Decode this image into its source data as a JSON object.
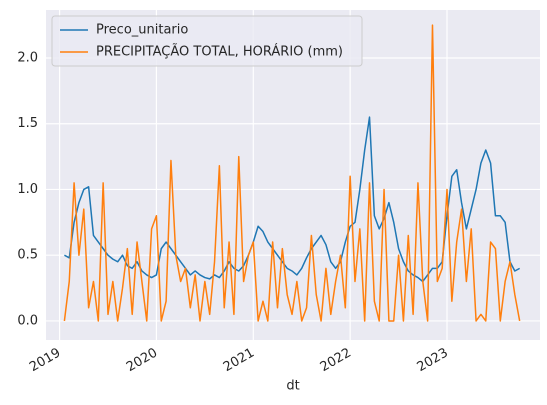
{
  "chart_data": {
    "type": "line",
    "xlabel": "dt",
    "x": [
      2019.05,
      2019.1,
      2019.15,
      2019.2,
      2019.25,
      2019.3,
      2019.35,
      2019.4,
      2019.45,
      2019.5,
      2019.55,
      2019.6,
      2019.65,
      2019.7,
      2019.75,
      2019.8,
      2019.85,
      2019.9,
      2019.95,
      2020.0,
      2020.05,
      2020.1,
      2020.15,
      2020.2,
      2020.25,
      2020.3,
      2020.35,
      2020.4,
      2020.45,
      2020.5,
      2020.55,
      2020.6,
      2020.65,
      2020.7,
      2020.75,
      2020.8,
      2020.85,
      2020.9,
      2020.95,
      2021.0,
      2021.05,
      2021.1,
      2021.15,
      2021.2,
      2021.25,
      2021.3,
      2021.35,
      2021.4,
      2021.45,
      2021.5,
      2021.55,
      2021.6,
      2021.65,
      2021.7,
      2021.75,
      2021.8,
      2021.85,
      2021.9,
      2021.95,
      2022.0,
      2022.05,
      2022.1,
      2022.15,
      2022.2,
      2022.25,
      2022.3,
      2022.35,
      2022.4,
      2022.45,
      2022.5,
      2022.55,
      2022.6,
      2022.65,
      2022.7,
      2022.75,
      2022.8,
      2022.85,
      2022.9,
      2022.95,
      2023.0,
      2023.05,
      2023.1,
      2023.15,
      2023.2,
      2023.25,
      2023.3,
      2023.35,
      2023.4,
      2023.45,
      2023.5,
      2023.55,
      2023.6,
      2023.65,
      2023.7,
      2023.75
    ],
    "series": [
      {
        "name": "Preco_unitario",
        "color": "#1f77b4",
        "values": [
          0.5,
          0.48,
          0.75,
          0.9,
          1.0,
          1.02,
          0.65,
          0.6,
          0.55,
          0.5,
          0.47,
          0.45,
          0.5,
          0.42,
          0.4,
          0.45,
          0.38,
          0.35,
          0.33,
          0.35,
          0.55,
          0.6,
          0.55,
          0.5,
          0.45,
          0.4,
          0.35,
          0.38,
          0.35,
          0.33,
          0.32,
          0.35,
          0.33,
          0.38,
          0.45,
          0.4,
          0.38,
          0.42,
          0.5,
          0.6,
          0.72,
          0.68,
          0.6,
          0.55,
          0.5,
          0.45,
          0.4,
          0.38,
          0.35,
          0.4,
          0.48,
          0.55,
          0.6,
          0.65,
          0.58,
          0.45,
          0.4,
          0.45,
          0.6,
          0.72,
          0.75,
          1.0,
          1.3,
          1.55,
          0.8,
          0.7,
          0.78,
          0.9,
          0.75,
          0.55,
          0.45,
          0.38,
          0.35,
          0.33,
          0.3,
          0.35,
          0.4,
          0.4,
          0.45,
          0.8,
          1.1,
          1.15,
          0.9,
          0.7,
          0.85,
          1.0,
          1.2,
          1.3,
          1.2,
          0.8,
          0.8,
          0.75,
          0.45,
          0.38,
          0.4
        ]
      },
      {
        "name": "PRECIPITAÇÃO TOTAL, HORÁRIO (mm)",
        "color": "#ff7f0e",
        "values": [
          0.0,
          0.3,
          1.05,
          0.5,
          0.85,
          0.1,
          0.3,
          0.0,
          1.05,
          0.05,
          0.3,
          0.0,
          0.25,
          0.55,
          0.05,
          0.6,
          0.3,
          0.0,
          0.7,
          0.8,
          0.0,
          0.15,
          1.22,
          0.5,
          0.3,
          0.4,
          0.1,
          0.35,
          0.0,
          0.3,
          0.05,
          0.45,
          1.18,
          0.1,
          0.6,
          0.05,
          1.25,
          0.3,
          0.5,
          0.6,
          0.0,
          0.15,
          0.0,
          0.6,
          0.1,
          0.55,
          0.2,
          0.05,
          0.3,
          0.0,
          0.1,
          0.65,
          0.2,
          0.0,
          0.4,
          0.05,
          0.3,
          0.5,
          0.1,
          1.1,
          0.3,
          0.7,
          0.0,
          1.05,
          0.15,
          0.0,
          1.0,
          0.0,
          0.0,
          0.5,
          0.0,
          0.65,
          0.05,
          1.05,
          0.3,
          0.0,
          2.25,
          0.3,
          0.4,
          1.0,
          0.15,
          0.6,
          0.85,
          0.3,
          0.7,
          0.0,
          0.05,
          0.0,
          0.6,
          0.55,
          0.0,
          0.3,
          0.45,
          0.2,
          0.0
        ]
      }
    ],
    "xlim": [
      2018.86,
      2023.96
    ],
    "xticks": [
      2019,
      2020,
      2021,
      2022,
      2023
    ],
    "ylim": [
      -0.145,
      2.365
    ],
    "yticks": [
      {
        "value": 0,
        "label": "0.0"
      },
      0.5,
      {
        "value": 1,
        "label": "1.0"
      },
      1.5,
      {
        "value": 2,
        "label": "2.0"
      }
    ],
    "grid": true,
    "legend": "upper left"
  }
}
